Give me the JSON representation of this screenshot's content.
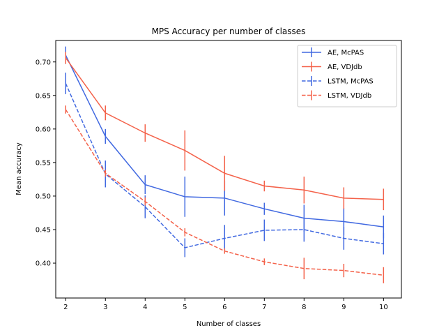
{
  "chart_data": {
    "type": "line",
    "title": "MPS Accuracy per number of classes",
    "xlabel": "Number of classes",
    "ylabel": "Mean accuracy",
    "x": [
      2,
      3,
      4,
      5,
      6,
      7,
      8,
      9,
      10
    ],
    "xlim": [
      1.75,
      10.45
    ],
    "ylim": [
      0.348,
      0.732
    ],
    "yticks": [
      "0.40",
      "0.45",
      "0.50",
      "0.55",
      "0.60",
      "0.65",
      "0.70"
    ],
    "ytick_values": [
      0.4,
      0.45,
      0.5,
      0.55,
      0.6,
      0.65,
      0.7
    ],
    "xticks": [
      "2",
      "3",
      "4",
      "5",
      "6",
      "7",
      "8",
      "9",
      "10"
    ],
    "grid": false,
    "legend_position": "top-right",
    "series": [
      {
        "name": "AE, McPAS",
        "color": "#4169e1",
        "dashed": false,
        "values": [
          0.71,
          0.589,
          0.517,
          0.499,
          0.497,
          0.481,
          0.467,
          0.462,
          0.454
        ],
        "errors": [
          0.013,
          0.011,
          0.014,
          0.03,
          0.026,
          0.009,
          0.02,
          0.02,
          0.017
        ]
      },
      {
        "name": "AE, VDJdb",
        "color": "#f4624a",
        "dashed": false,
        "values": [
          0.706,
          0.624,
          0.594,
          0.568,
          0.534,
          0.515,
          0.509,
          0.497,
          0.495
        ],
        "errors": [
          0.009,
          0.011,
          0.013,
          0.03,
          0.026,
          0.008,
          0.02,
          0.016,
          0.016
        ]
      },
      {
        "name": "LSTM, McPAS",
        "color": "#4169e1",
        "dashed": true,
        "values": [
          0.668,
          0.533,
          0.484,
          0.423,
          0.437,
          0.449,
          0.45,
          0.437,
          0.429
        ],
        "errors": [
          0.016,
          0.02,
          0.017,
          0.014,
          0.02,
          0.016,
          0.018,
          0.017,
          0.016
        ]
      },
      {
        "name": "LSTM, VDJdb",
        "color": "#f4624a",
        "dashed": true,
        "values": [
          0.629,
          0.534,
          0.492,
          0.446,
          0.418,
          0.402,
          0.392,
          0.389,
          0.382
        ],
        "errors": [
          0.006,
          0.005,
          0.006,
          0.006,
          0.004,
          0.005,
          0.016,
          0.01,
          0.012
        ]
      }
    ]
  }
}
